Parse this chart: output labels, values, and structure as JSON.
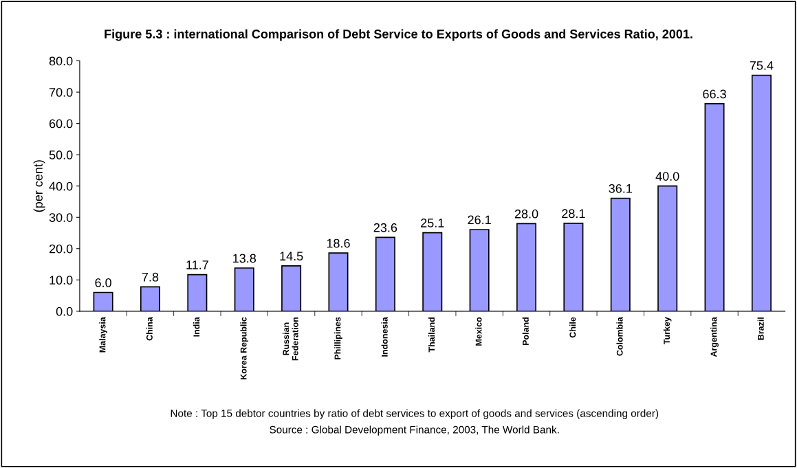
{
  "chart_data": {
    "type": "bar",
    "title": "Figure 5.3 : international Comparison of Debt Service to Exports of Goods and Services Ratio, 2001.",
    "ylabel": "(per cent)",
    "categories": [
      "Malaysia",
      "China",
      "India",
      "Korea Republic",
      "Russian\nFederation",
      "Phillipines",
      "Indonesia",
      "Thailand",
      "Mexico",
      "Poland",
      "Chile",
      "Colombia",
      "Turkey",
      "Argentina",
      "Brazil"
    ],
    "values": [
      6.0,
      7.8,
      11.7,
      13.8,
      14.5,
      18.6,
      23.6,
      25.1,
      26.1,
      28.0,
      28.1,
      36.1,
      40.0,
      66.3,
      75.4
    ],
    "value_labels": [
      "6.0",
      "7.8",
      "11.7",
      "13.8",
      "14.5",
      "18.6",
      "23.6",
      "25.1",
      "26.1",
      "28.0",
      "28.1",
      "36.1",
      "40.0",
      "66.3",
      "75.4"
    ],
    "color": "#9999ff",
    "ylim": [
      0,
      80
    ],
    "yticks": [
      {
        "value": 0,
        "label": "0.0"
      },
      {
        "value": 10,
        "label": "10.0"
      },
      {
        "value": 20,
        "label": "20.0"
      },
      {
        "value": 30,
        "label": "30.0"
      },
      {
        "value": 40,
        "label": "40.0"
      },
      {
        "value": 50,
        "label": "50.0"
      },
      {
        "value": 60,
        "label": "60.0"
      },
      {
        "value": 70,
        "label": "70.0"
      },
      {
        "value": 80,
        "label": "80.0"
      }
    ],
    "grid": false,
    "legend": false,
    "annotations": [
      "Note : Top 15 debtor countries by ratio of debt services to export of goods and services (ascending order)",
      "Source : Global Development Finance, 2003, The World Bank."
    ]
  }
}
